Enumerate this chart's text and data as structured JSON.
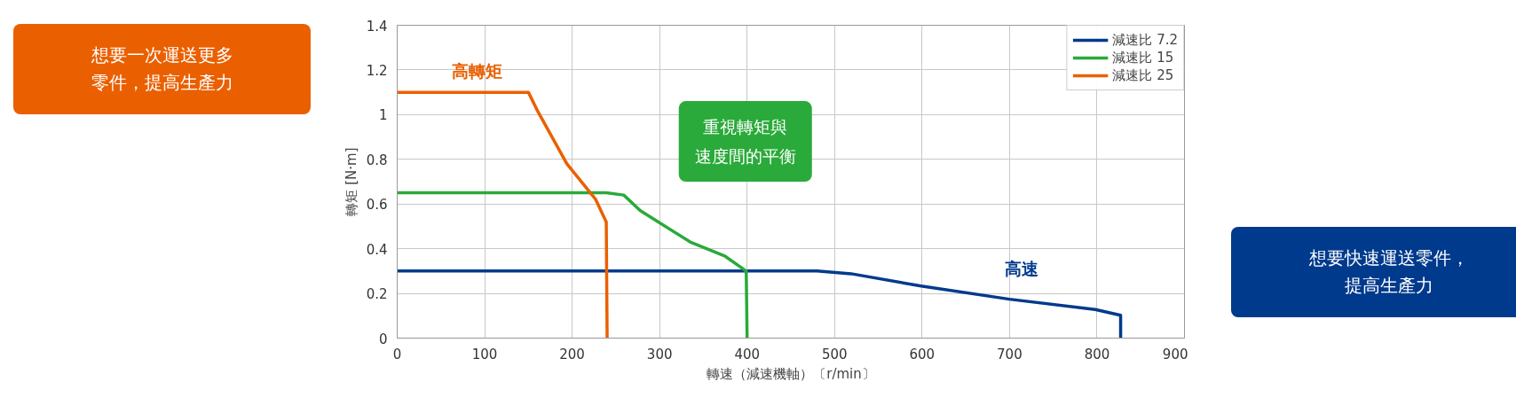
{
  "chart_data": {
    "type": "line",
    "xlabel": "轉速（減速機軸）〔r/min〕",
    "ylabel": "轉矩 [N·m]",
    "xlim": [
      0,
      900
    ],
    "xticks": [
      0,
      100,
      200,
      300,
      400,
      500,
      600,
      700,
      800,
      900
    ],
    "ylim": [
      0,
      1.4
    ],
    "yticks": [
      0,
      {
        "value": 0.2,
        "label": "0.2"
      },
      {
        "value": 0.4,
        "label": "0.4"
      },
      {
        "value": 0.6,
        "label": "0.6"
      },
      {
        "value": 0.8,
        "label": "0.8"
      },
      1,
      {
        "value": 1.2,
        "label": "1.2"
      },
      {
        "value": 1.4,
        "label": "1.4"
      }
    ],
    "grid": true,
    "legend": "top right",
    "line_style": "solid",
    "series": [
      {
        "name": "減速比 7.2",
        "color": "#003a8c",
        "x": [
          0,
          440,
          480,
          519,
          599,
          700,
          798,
          827,
          827
        ],
        "values": [
          0.3,
          0.3,
          0.3,
          0.288,
          0.233,
          0.174,
          0.128,
          0.102,
          0
        ]
      },
      {
        "name": "減速比 15",
        "color": "#2aaa3a",
        "x": [
          0,
          239,
          259,
          278,
          335,
          375,
          399,
          400
        ],
        "values": [
          0.65,
          0.65,
          0.64,
          0.57,
          0.43,
          0.366,
          0.3,
          0
        ]
      },
      {
        "name": "減速比 25",
        "color": "#ea6000",
        "x": [
          0,
          150,
          160,
          194,
          227,
          239,
          240
        ],
        "values": [
          1.1,
          1.1,
          1.02,
          0.78,
          0.62,
          0.52,
          0
        ]
      }
    ],
    "annotations": [
      "想要一次運送更多零件，提高生產力",
      "高轉矩",
      "重視轉矩與速度間的平衡",
      "高速",
      "想要快速運送零件，提高生產力"
    ]
  }
}
